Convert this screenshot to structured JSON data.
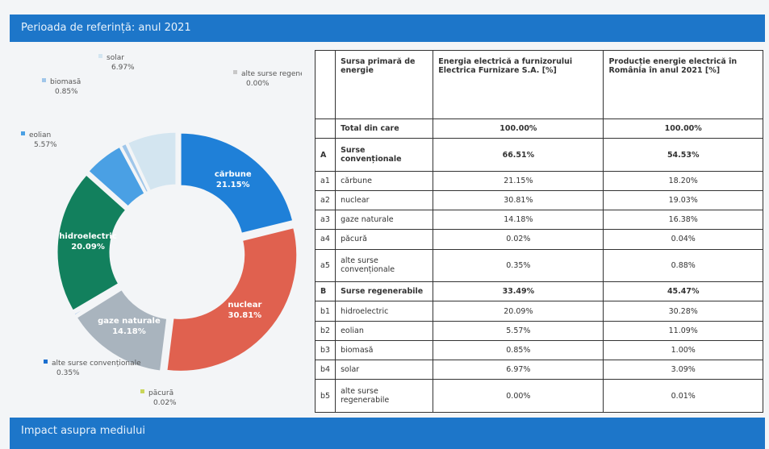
{
  "header": {
    "title": "Perioada de referință: anul 2021"
  },
  "chart_data": {
    "type": "pie",
    "categories": [
      "cărbune",
      "nuclear",
      "gaze naturale",
      "păcură",
      "alte surse convenționale",
      "hidroelectric",
      "eolian",
      "biomasă",
      "solar",
      "alte surse regenerabile"
    ],
    "values": [
      21.15,
      30.81,
      14.18,
      0.02,
      0.35,
      20.09,
      5.57,
      0.85,
      6.97,
      0.0
    ],
    "value_labels": [
      "21.15%",
      "30.81%",
      "14.18%",
      "0.02%",
      "0.35%",
      "20.09%",
      "5.57%",
      "0.85%",
      "6.97%",
      "0.00%"
    ],
    "colors": [
      "#1f80d8",
      "#e0614f",
      "#a9b4be",
      "#c9d65a",
      "#1b6fcf",
      "#12805d",
      "#4aa0e4",
      "#9fc6ea",
      "#d3e5f0",
      "#c8c8c8"
    ]
  },
  "table": {
    "header": [
      "",
      "Sursa primară de energie",
      "Energia electrică a furnizorului Electrica Furnizare S.A. [%]",
      "Producție energie electrică în România în anul 2021 [%]"
    ],
    "rows": [
      [
        "",
        "Total din care",
        "100.00%",
        "100.00%"
      ],
      [
        "A",
        "Surse convenționale",
        "66.51%",
        "54.53%"
      ],
      [
        "a1",
        "cărbune",
        "21.15%",
        "18.20%"
      ],
      [
        "a2",
        "nuclear",
        "30.81%",
        "19.03%"
      ],
      [
        "a3",
        "gaze naturale",
        "14.18%",
        "16.38%"
      ],
      [
        "a4",
        "păcură",
        "0.02%",
        "0.04%"
      ],
      [
        "a5",
        "alte surse convenționale",
        "0.35%",
        "0.88%"
      ],
      [
        "B",
        "Surse regenerabile",
        "33.49%",
        "45.47%"
      ],
      [
        "b1",
        "hidroelectric",
        "20.09%",
        "30.28%"
      ],
      [
        "b2",
        "eolian",
        "5.57%",
        "11.09%"
      ],
      [
        "b3",
        "biomasă",
        "0.85%",
        "1.00%"
      ],
      [
        "b4",
        "solar",
        "6.97%",
        "3.09%"
      ],
      [
        "b5",
        "alte surse regenerabile",
        "0.00%",
        "0.01%"
      ]
    ]
  },
  "footer": {
    "title": "Impact asupra mediului"
  }
}
